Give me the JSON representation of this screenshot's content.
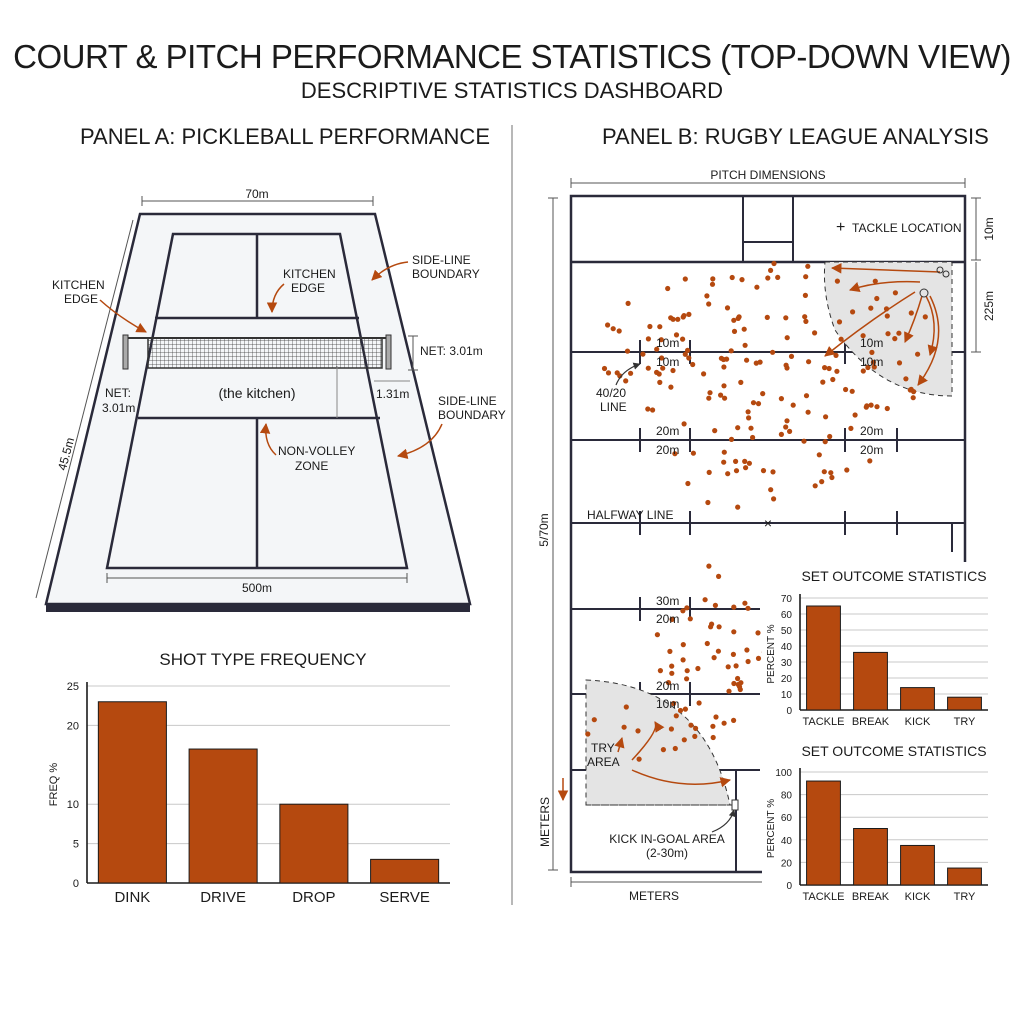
{
  "header": {
    "title": "COURT & PITCH PERFORMANCE STATISTICS (TOP-DOWN VIEW)",
    "subtitle": "DESCRIPTIVE STATISTICS DASHBOARD"
  },
  "colors": {
    "accent": "#b5490f",
    "ink": "#1b1b1b",
    "grid": "#c8c8c8",
    "zone": "#e6e6e6"
  },
  "panel_a": {
    "title": "PANEL A: PICKLEBALL PERFORMANCE",
    "court": {
      "top_width": "70m",
      "bottom_width": "500m",
      "length": "45.5m",
      "net_right": "NET: 3.01m",
      "net_left_1": "NET:",
      "net_left_2": "3.01m",
      "depth_right": "1.31m",
      "kitchen_edge_1": "KITCHEN",
      "kitchen_edge_2": "EDGE",
      "kitchen_edge_center_1": "KITCHEN",
      "kitchen_edge_center_2": "EDGE",
      "sideline_top_1": "SIDE-LINE",
      "sideline_top_2": "BOUNDARY",
      "sideline_bottom_1": "SIDE-LINE",
      "sideline_bottom_2": "BOUNDARY",
      "kitchen_label": "(the kitchen)",
      "nvz_1": "NON-VOLLEY",
      "nvz_2": "ZONE"
    },
    "chart_title": "SHOT TYPE FREQUENCY"
  },
  "panel_b": {
    "title": "PANEL B: RUGBY LEAGUE ANALYSIS",
    "pitch": {
      "dimensions_label": "PITCH DIMENSIONS",
      "length": "5/70m",
      "meters_bottom": "METERS",
      "meters_left": "METERS",
      "legend": "TACKLE LOCATION",
      "right_10m": "10m",
      "right_225m": "225m",
      "l10a": "10m",
      "l10b": "10m",
      "r10a": "10m",
      "r10b": "10m",
      "l20a": "20m",
      "l20b": "20m",
      "r20a": "20m",
      "r20b": "20m",
      "l30": "30m",
      "l20c": "20m",
      "l20d": "20m",
      "l10c": "10m",
      "line_4020_1": "40/20",
      "line_4020_2": "LINE",
      "halfway": "HALFWAY LINE",
      "try_area_1": "TRY",
      "try_area_2": "AREA",
      "kick_ingoal_1": "KICK IN-GOAL AREA",
      "kick_ingoal_2": "(2-30m)"
    }
  },
  "chart_data": [
    {
      "type": "bar",
      "title": "SHOT TYPE FREQUENCY",
      "categories": [
        "DINK",
        "DRIVE",
        "DROP",
        "SERVE"
      ],
      "values": [
        23,
        17,
        10,
        3
      ],
      "ylabel": "FREQ %",
      "ylim": [
        0,
        25
      ],
      "yticks": [
        0,
        5,
        10,
        20,
        25
      ],
      "grid": true
    },
    {
      "type": "bar",
      "title": "SET OUTCOME STATISTICS",
      "categories": [
        "TACKLE",
        "BREAK",
        "KICK",
        "TRY"
      ],
      "values": [
        65,
        36,
        14,
        8
      ],
      "ylabel": "PERCENT %",
      "ylim": [
        0,
        70
      ],
      "yticks": [
        0,
        10,
        20,
        30,
        40,
        50,
        60,
        70
      ],
      "grid": true
    },
    {
      "type": "bar",
      "title": "SET OUTCOME STATISTICS",
      "categories": [
        "TACKLE",
        "BREAK",
        "KICK",
        "TRY"
      ],
      "values": [
        92,
        50,
        35,
        15
      ],
      "ylabel": "PERCENT %",
      "ylim": [
        0,
        100
      ],
      "yticks": [
        0,
        20,
        40,
        60,
        80,
        100
      ],
      "grid": true
    }
  ]
}
